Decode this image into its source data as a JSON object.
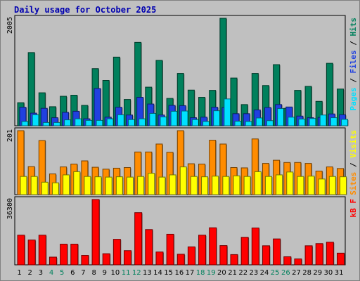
{
  "title": "Daily usage for October 2025",
  "chart_data": [
    {
      "type": "bar",
      "ymax_label": "2005",
      "categories": [
        "1",
        "2",
        "3",
        "4",
        "5",
        "6",
        "7",
        "8",
        "9",
        "10",
        "11",
        "12",
        "13",
        "14",
        "15",
        "16",
        "17",
        "18",
        "19",
        "20",
        "21",
        "22",
        "23",
        "24",
        "25",
        "26",
        "27",
        "28",
        "29",
        "30",
        "31"
      ],
      "weekend_days": [
        "4",
        "5",
        "11",
        "12",
        "18",
        "19",
        "25",
        "26"
      ],
      "series": [
        {
          "name": "Hits",
          "color": "#00805c",
          "values": [
            430,
            1365,
            615,
            355,
            550,
            570,
            380,
            1065,
            845,
            1280,
            490,
            1555,
            720,
            1220,
            510,
            975,
            665,
            530,
            660,
            2005,
            890,
            395,
            975,
            750,
            1140,
            325,
            660,
            735,
            455,
            1165,
            685
          ]
        },
        {
          "name": "Files",
          "color": "#2040e0",
          "values": [
            345,
            235,
            325,
            150,
            250,
            270,
            130,
            695,
            160,
            345,
            200,
            530,
            405,
            200,
            380,
            375,
            150,
            160,
            345,
            340,
            225,
            225,
            295,
            340,
            395,
            350,
            180,
            150,
            155,
            220,
            205
          ]
        },
        {
          "name": "Pages",
          "color": "#00e0ff",
          "values": [
            80,
            205,
            60,
            60,
            110,
            130,
            100,
            100,
            130,
            205,
            115,
            130,
            230,
            165,
            270,
            275,
            115,
            80,
            280,
            500,
            85,
            80,
            145,
            95,
            320,
            160,
            125,
            135,
            200,
            150,
            120
          ]
        }
      ],
      "ylabel_parts": [
        {
          "text": "Pages",
          "color": "#00e0ff"
        },
        {
          "text": " / ",
          "color": "#000000"
        },
        {
          "text": "Files",
          "color": "#2040e0"
        },
        {
          "text": " / ",
          "color": "#000000"
        },
        {
          "text": "Hits",
          "color": "#00805c"
        }
      ]
    },
    {
      "type": "bar",
      "ymax_label": "201",
      "categories": [
        "1",
        "2",
        "3",
        "4",
        "5",
        "6",
        "7",
        "8",
        "9",
        "10",
        "11",
        "12",
        "13",
        "14",
        "15",
        "16",
        "17",
        "18",
        "19",
        "20",
        "21",
        "22",
        "23",
        "24",
        "25",
        "26",
        "27",
        "28",
        "29",
        "30",
        "31"
      ],
      "series": [
        {
          "name": "Sites",
          "color": "#ff8c00",
          "values": [
            201,
            88,
            170,
            65,
            87,
            96,
            106,
            86,
            80,
            83,
            85,
            134,
            134,
            159,
            133,
            201,
            97,
            96,
            171,
            159,
            85,
            84,
            175,
            98,
            108,
            101,
            101,
            98,
            74,
            87,
            82
          ]
        },
        {
          "name": "Visits",
          "color": "#ffff00",
          "values": [
            57,
            57,
            39,
            37,
            62,
            72,
            57,
            56,
            55,
            56,
            55,
            57,
            67,
            55,
            62,
            87,
            57,
            56,
            58,
            57,
            59,
            57,
            72,
            57,
            62,
            71,
            57,
            58,
            49,
            57,
            56
          ]
        }
      ],
      "ylabel_parts": [
        {
          "text": "Sites",
          "color": "#ff8c00"
        },
        {
          "text": " / ",
          "color": "#000000"
        },
        {
          "text": "Visits",
          "color": "#ffff00"
        }
      ]
    },
    {
      "type": "bar",
      "ymax_label": "36300",
      "categories": [
        "1",
        "2",
        "3",
        "4",
        "5",
        "6",
        "7",
        "8",
        "9",
        "10",
        "11",
        "12",
        "13",
        "14",
        "15",
        "16",
        "17",
        "18",
        "19",
        "20",
        "21",
        "22",
        "23",
        "24",
        "25",
        "26",
        "27",
        "28",
        "29",
        "30",
        "31"
      ],
      "series": [
        {
          "name": "kB F",
          "color": "#ff0000",
          "values": [
            16500,
            13800,
            16500,
            4300,
            11500,
            11500,
            5250,
            36300,
            6190,
            14200,
            7900,
            29000,
            19600,
            7150,
            17000,
            5900,
            10000,
            16500,
            20600,
            10700,
            5700,
            15300,
            20500,
            10600,
            14400,
            4500,
            3300,
            10600,
            11800,
            12600,
            6500
          ]
        }
      ],
      "ylabel_parts": [
        {
          "text": "kB F",
          "color": "#ff0000"
        }
      ]
    }
  ]
}
